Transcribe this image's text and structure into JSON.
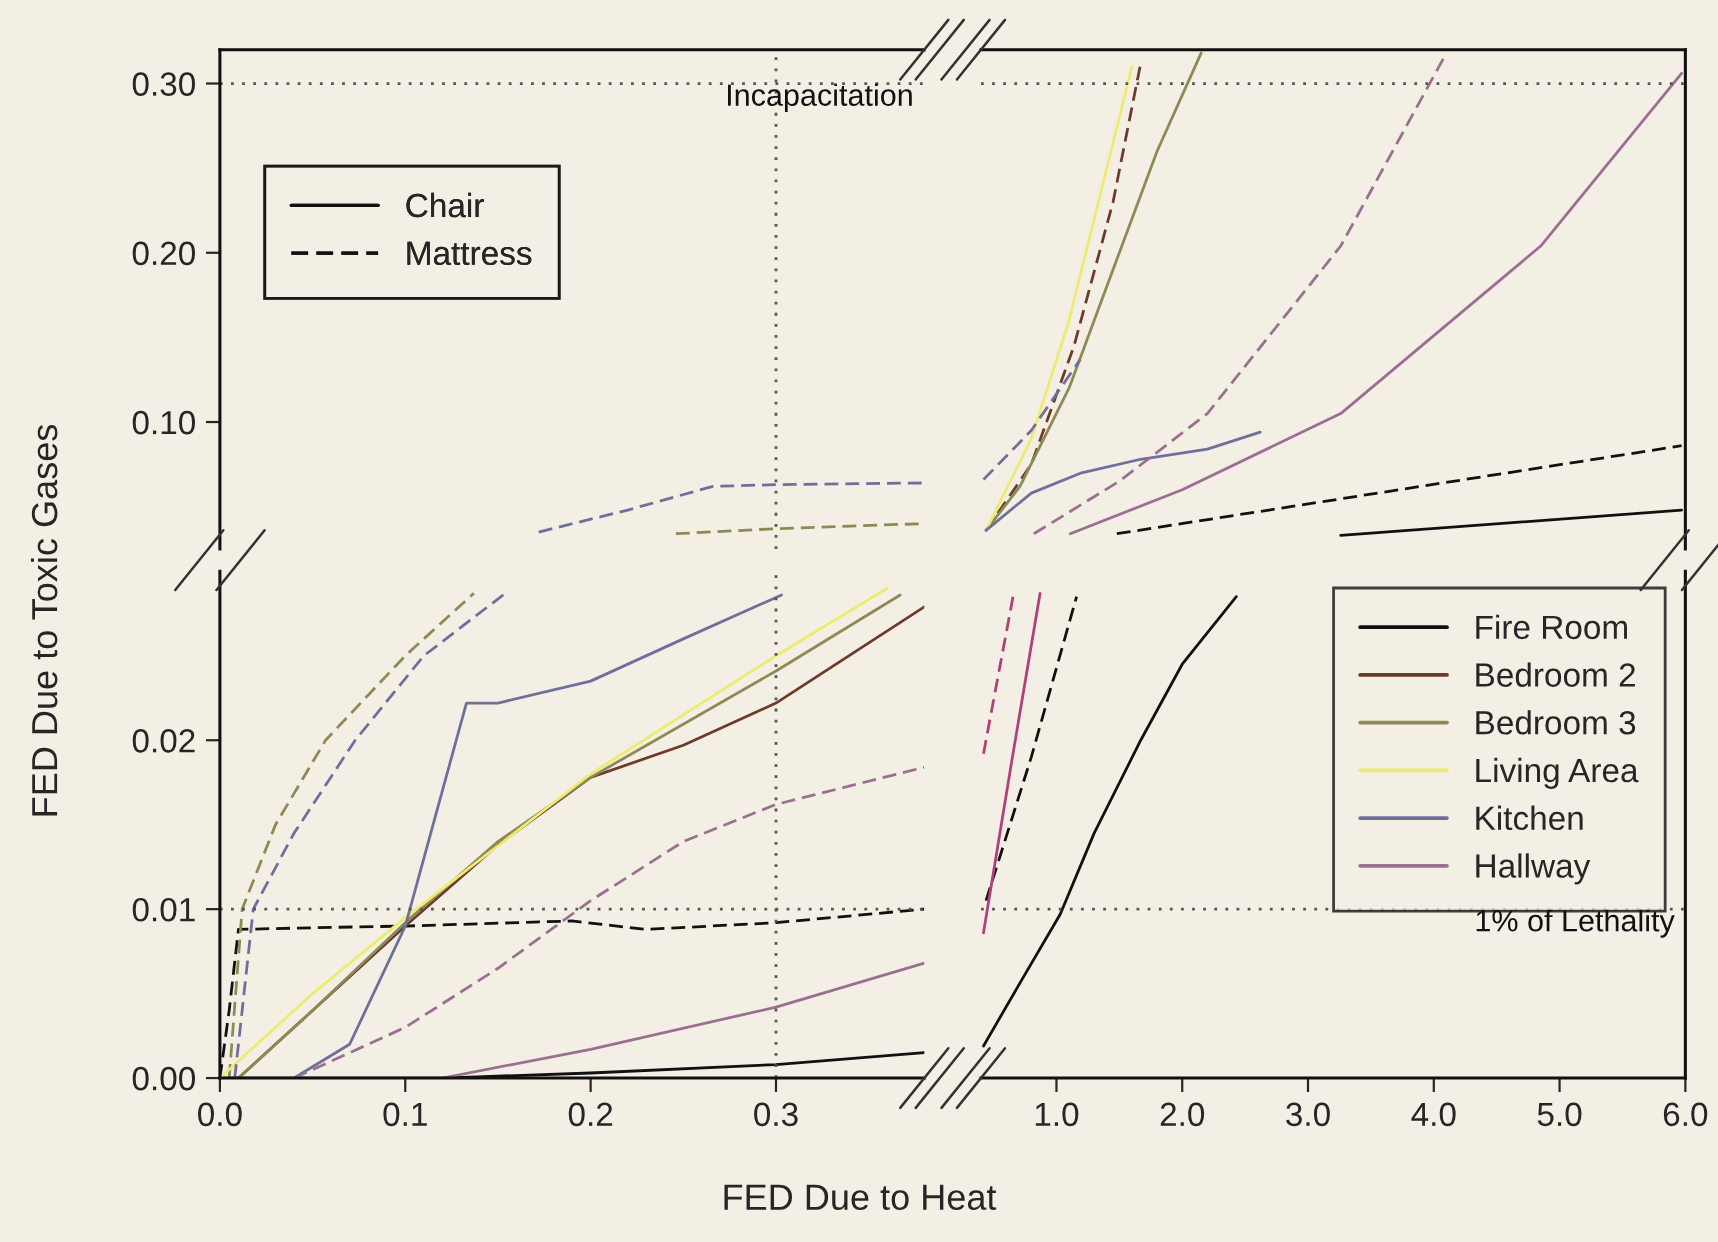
{
  "chart_data": [
    {
      "type": "line",
      "ylabel": "FED Due to Toxic Gases",
      "xlim": [
        0,
        0.38
      ],
      "ylim": [
        0.025,
        0.32
      ],
      "yticks": [
        {
          "value": 0.1,
          "label": "0.10"
        },
        {
          "value": 0.2,
          "label": "0.20"
        },
        {
          "value": 0.3,
          "label": "0.30"
        }
      ],
      "tick_labels": "y",
      "grid": false,
      "annotations": [
        "Chair",
        "Mattress"
      ],
      "ref_lines": [
        {
          "axis": "y",
          "value": 0.3,
          "label": "Incapacitation",
          "line_style": "dotted",
          "color": "#555555"
        },
        {
          "axis": "x",
          "value": 0.3,
          "label": null,
          "line_style": "dotted",
          "color": "#555555"
        }
      ],
      "series": [
        {
          "color": "#6f6f9c",
          "line_style": "dashed",
          "x": [
            0.172,
            0.22,
            0.266,
            0.3,
            0.38
          ],
          "values": [
            0.035,
            0.048,
            0.062,
            0.063,
            0.064
          ]
        },
        {
          "color": "#8c8a55",
          "line_style": "dashed",
          "x": [
            0.246,
            0.3,
            0.38
          ],
          "values": [
            0.034,
            0.037,
            0.04
          ]
        }
      ]
    },
    {
      "type": "line",
      "xlabel": "FED Due to Heat",
      "xlim": [
        0,
        0.38
      ],
      "ylim": [
        0,
        0.03
      ],
      "xticks": [
        {
          "value": 0,
          "label": "0.0"
        },
        {
          "value": 0.1,
          "label": "0.1"
        },
        {
          "value": 0.2,
          "label": "0.2"
        },
        {
          "value": 0.3,
          "label": "0.3"
        }
      ],
      "yticks": [
        {
          "value": 0,
          "label": "0.00"
        },
        {
          "value": 0.01,
          "label": "0.01"
        },
        {
          "value": 0.02,
          "label": "0.02"
        }
      ],
      "legend": "right",
      "grid": false,
      "ref_lines": [
        {
          "axis": "y",
          "value": 0.01,
          "label": null,
          "line_style": "dotted",
          "color": "#555555"
        },
        {
          "axis": "x",
          "value": 0.3,
          "label": null,
          "line_style": "dotted",
          "color": "#555555"
        }
      ],
      "series": [
        {
          "name": "Fire Room",
          "color": "#111111",
          "line_style": "solid",
          "x": [
            0,
            0.12,
            0.2,
            0.3,
            0.38
          ],
          "values": [
            0,
            0,
            0.0003,
            0.0008,
            0.0015
          ]
        },
        {
          "color": "#111111",
          "line_style": "dashed",
          "x": [
            0,
            0.005,
            0.01,
            0.05,
            0.1,
            0.19,
            0.23,
            0.3,
            0.38
          ],
          "values": [
            0,
            0.004,
            0.0088,
            0.0089,
            0.009,
            0.0093,
            0.0088,
            0.0092,
            0.01
          ]
        },
        {
          "name": "Bedroom 2",
          "color": "#6e3b2b",
          "line_style": "solid",
          "x": [
            0.01,
            0.05,
            0.1,
            0.15,
            0.2,
            0.25,
            0.3,
            0.38
          ],
          "values": [
            0,
            0.004,
            0.009,
            0.0138,
            0.0178,
            0.0197,
            0.0222,
            0.0279
          ]
        },
        {
          "name": "Bedroom 3",
          "color": "#8c8a55",
          "line_style": "solid",
          "x": [
            0.01,
            0.05,
            0.1,
            0.15,
            0.2,
            0.3,
            0.367
          ],
          "values": [
            0,
            0.004,
            0.0092,
            0.014,
            0.0178,
            0.0241,
            0.0286
          ]
        },
        {
          "color": "#8c8a55",
          "line_style": "dashed",
          "x": [
            0.005,
            0.012,
            0.03,
            0.057,
            0.1,
            0.137
          ],
          "values": [
            0,
            0.01,
            0.015,
            0.02,
            0.025,
            0.0287
          ]
        },
        {
          "name": "Living Area",
          "color": "#eeec70",
          "line_style": "solid",
          "x": [
            0,
            0.05,
            0.1,
            0.2,
            0.3,
            0.36
          ],
          "values": [
            0,
            0.005,
            0.0095,
            0.018,
            0.025,
            0.029
          ]
        },
        {
          "name": "Kitchen",
          "color": "#6f6f9c",
          "line_style": "solid",
          "x": [
            0.04,
            0.07,
            0.1,
            0.12,
            0.133,
            0.15,
            0.2,
            0.25,
            0.303
          ],
          "values": [
            0,
            0.002,
            0.009,
            0.017,
            0.0222,
            0.0222,
            0.0235,
            0.026,
            0.0286
          ]
        },
        {
          "color": "#6f6f9c",
          "line_style": "dashed",
          "x": [
            0.008,
            0.018,
            0.04,
            0.073,
            0.11,
            0.154
          ],
          "values": [
            0,
            0.01,
            0.0145,
            0.02,
            0.025,
            0.0287
          ]
        },
        {
          "name": "Hallway",
          "color": "#9a6f90",
          "line_style": "solid",
          "x": [
            0.12,
            0.2,
            0.3,
            0.38
          ],
          "values": [
            0,
            0.0017,
            0.0042,
            0.0068
          ]
        },
        {
          "color": "#9a6f90",
          "line_style": "dashed",
          "x": [
            0.04,
            0.1,
            0.15,
            0.2,
            0.25,
            0.3,
            0.38
          ],
          "values": [
            0,
            0.003,
            0.0065,
            0.0105,
            0.014,
            0.0162,
            0.0184
          ]
        }
      ]
    },
    {
      "type": "line",
      "xlim": [
        0.4,
        6.0
      ],
      "ylim": [
        0.025,
        0.32
      ],
      "tick_labels": false,
      "grid": false,
      "ref_lines": [
        {
          "axis": "y",
          "value": 0.3,
          "label": null,
          "line_style": "dotted",
          "color": "#555555"
        }
      ],
      "series": [
        {
          "color": "#111111",
          "line_style": "solid",
          "x": [
            3.26,
            5.97
          ],
          "values": [
            0.033,
            0.048
          ]
        },
        {
          "color": "#111111",
          "line_style": "dashed",
          "x": [
            1.48,
            5.97
          ],
          "values": [
            0.034,
            0.086
          ]
        },
        {
          "color": "#6e3b2b",
          "line_style": "dashed",
          "x": [
            0.44,
            0.8,
            1.14,
            1.45,
            1.67
          ],
          "values": [
            0.036,
            0.075,
            0.145,
            0.23,
            0.312
          ]
        },
        {
          "color": "#8c8a55",
          "line_style": "solid",
          "x": [
            0.44,
            0.71,
            1.1,
            1.46,
            1.8,
            2.15
          ],
          "values": [
            0.036,
            0.062,
            0.12,
            0.192,
            0.26,
            0.318
          ]
        },
        {
          "color": "#eeec70",
          "line_style": "solid",
          "x": [
            0.44,
            0.8,
            1.1,
            1.4,
            1.6
          ],
          "values": [
            0.036,
            0.09,
            0.16,
            0.25,
            0.31
          ]
        },
        {
          "color": "#6f6f9c",
          "line_style": "solid",
          "x": [
            0.44,
            0.8,
            1.2,
            1.67,
            2.2,
            2.62
          ],
          "values": [
            0.036,
            0.058,
            0.07,
            0.078,
            0.084,
            0.094
          ]
        },
        {
          "color": "#6f6f9c",
          "line_style": "dashed",
          "x": [
            0.42,
            0.8,
            1.19
          ],
          "values": [
            0.066,
            0.095,
            0.137
          ]
        },
        {
          "color": "#9a6f90",
          "line_style": "solid",
          "x": [
            1.11,
            2.0,
            3.26,
            4.85,
            5.97
          ],
          "values": [
            0.034,
            0.06,
            0.105,
            0.204,
            0.306
          ]
        },
        {
          "color": "#9a6f90",
          "line_style": "dashed",
          "x": [
            0.82,
            1.5,
            2.2,
            3.26,
            4.1
          ],
          "values": [
            0.034,
            0.065,
            0.105,
            0.204,
            0.318
          ]
        }
      ]
    },
    {
      "type": "line",
      "xlim": [
        0.4,
        6.0
      ],
      "ylim": [
        0,
        0.03
      ],
      "xticks": [
        {
          "value": 1,
          "label": "1.0"
        },
        {
          "value": 2,
          "label": "2.0"
        },
        {
          "value": 3,
          "label": "3.0"
        },
        {
          "value": 4,
          "label": "4.0"
        },
        {
          "value": 5,
          "label": "5.0"
        },
        {
          "value": 6,
          "label": "6.0"
        }
      ],
      "tick_labels": "x",
      "grid": false,
      "ref_lines": [
        {
          "axis": "y",
          "value": 0.01,
          "label": "1% of Lethality",
          "line_style": "dotted",
          "color": "#555555"
        }
      ],
      "series": [
        {
          "color": "#111111",
          "line_style": "solid",
          "x": [
            0.42,
            0.7,
            1.03,
            1.3,
            1.67,
            2.0,
            2.43
          ],
          "values": [
            0.0019,
            0.0055,
            0.0097,
            0.0145,
            0.02,
            0.0245,
            0.0285
          ]
        },
        {
          "color": "#111111",
          "line_style": "dashed",
          "x": [
            0.44,
            0.8,
            1.16
          ],
          "values": [
            0.0105,
            0.019,
            0.0285
          ]
        },
        {
          "color": "#b0407a",
          "line_style": "solid",
          "x": [
            0.42,
            0.65,
            0.87
          ],
          "values": [
            0.0086,
            0.019,
            0.0287
          ]
        },
        {
          "color": "#b0407a",
          "line_style": "dashed",
          "x": [
            0.42,
            0.66
          ],
          "values": [
            0.0192,
            0.0287
          ]
        }
      ]
    }
  ]
}
